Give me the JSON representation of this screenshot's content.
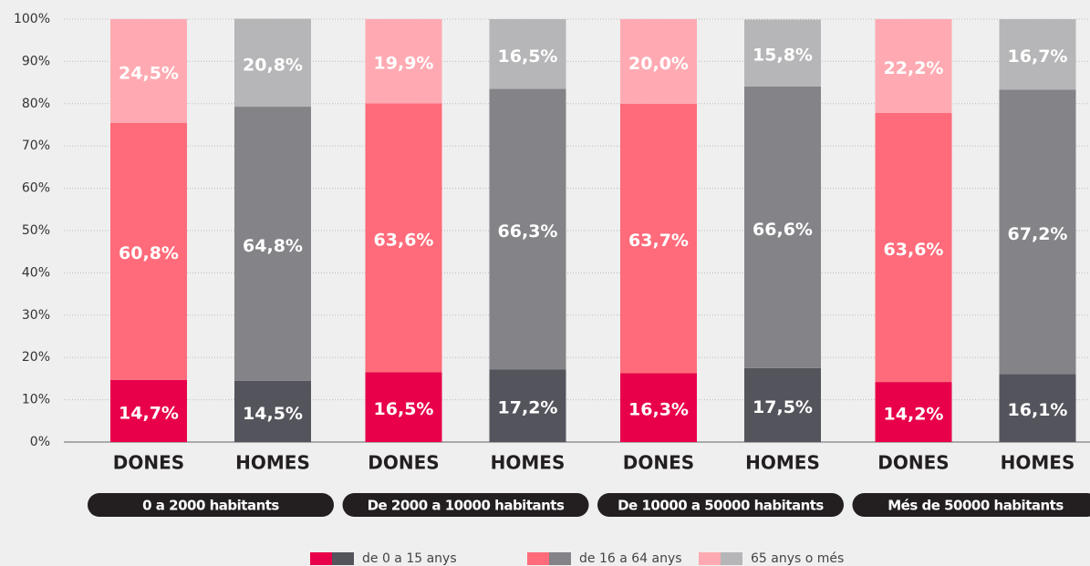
{
  "chart_data": {
    "type": "stacked_bar",
    "categories": [
      "DONES",
      "HOMES",
      "DONES",
      "HOMES",
      "DONES",
      "HOMES",
      "DONES",
      "HOMES"
    ],
    "groups": [
      "0 a 2000 habitants",
      "De 2000 a 10000 habitants",
      "De 10000 a 50000 habitants",
      "Més de 50000 habitants"
    ],
    "series": [
      {
        "name": "de 0 a 15 anys",
        "colors": [
          "#e8004a",
          "#54545c"
        ],
        "values": [
          14.7,
          14.5,
          16.5,
          17.2,
          16.3,
          17.5,
          14.2,
          16.1
        ],
        "value_labels": [
          "14,7%",
          "14,5%",
          "16,5%",
          "17,2%",
          "16,3%",
          "17,5%",
          "14,2%",
          "16,1%"
        ]
      },
      {
        "name": "de 16 a 64 anys",
        "colors": [
          "#ff6b7a",
          "#838388"
        ],
        "values": [
          60.8,
          64.8,
          63.6,
          66.3,
          63.7,
          66.6,
          63.6,
          67.2
        ],
        "value_labels": [
          "60,8%",
          "64,8%",
          "63,6%",
          "66,3%",
          "63,7%",
          "66,6%",
          "63,6%",
          "67,2%"
        ]
      },
      {
        "name": "65 anys o més",
        "colors": [
          "#ffaab2",
          "#b6b6b8"
        ],
        "values": [
          24.5,
          20.8,
          19.9,
          16.5,
          20.0,
          15.8,
          22.2,
          16.7
        ],
        "value_labels": [
          "24,5%",
          "20,8%",
          "19,9%",
          "16,5%",
          "20,0%",
          "15,8%",
          "22,2%",
          "16,7%"
        ]
      }
    ],
    "ylim": [
      0,
      100
    ],
    "yticks": [
      {
        "value": 0,
        "label": "0%"
      },
      {
        "value": 10,
        "label": "10%"
      },
      {
        "value": 20,
        "label": "20%"
      },
      {
        "value": 30,
        "label": "30%"
      },
      {
        "value": 40,
        "label": "40%"
      },
      {
        "value": 50,
        "label": "50%"
      },
      {
        "value": 60,
        "label": "60%"
      },
      {
        "value": 70,
        "label": "70%"
      },
      {
        "value": 80,
        "label": "80%"
      },
      {
        "value": 90,
        "label": "90%"
      },
      {
        "value": 100,
        "label": "100%"
      }
    ],
    "grid": true
  }
}
